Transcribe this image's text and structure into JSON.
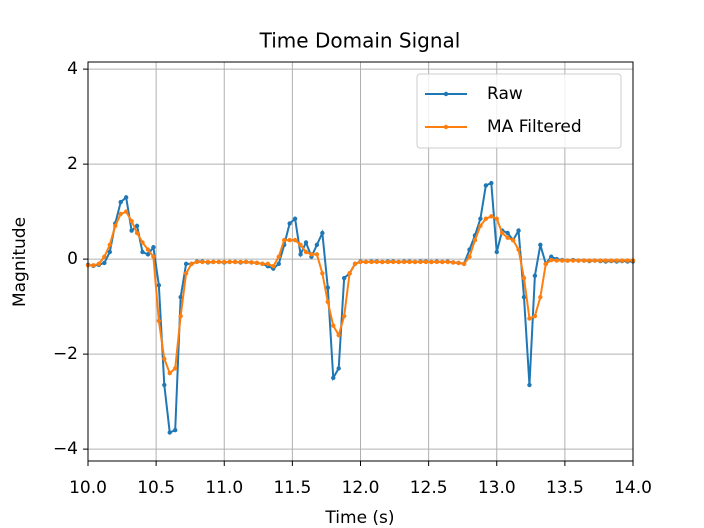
{
  "chart_data": {
    "type": "line",
    "title": "Time Domain Signal",
    "x_label": "Time (s)",
    "y_label": "Magnitude",
    "x": [
      10.0,
      10.04,
      10.08,
      10.12,
      10.16,
      10.2,
      10.24,
      10.28,
      10.32,
      10.36,
      10.4,
      10.44,
      10.48,
      10.52,
      10.56,
      10.6,
      10.64,
      10.68,
      10.72,
      10.76,
      10.8,
      10.84,
      10.88,
      10.92,
      10.96,
      11.0,
      11.04,
      11.08,
      11.12,
      11.16,
      11.2,
      11.24,
      11.28,
      11.32,
      11.36,
      11.4,
      11.44,
      11.48,
      11.52,
      11.56,
      11.6,
      11.64,
      11.68,
      11.72,
      11.76,
      11.8,
      11.84,
      11.88,
      11.92,
      11.96,
      12.0,
      12.04,
      12.08,
      12.12,
      12.16,
      12.2,
      12.24,
      12.28,
      12.32,
      12.36,
      12.4,
      12.44,
      12.48,
      12.52,
      12.56,
      12.6,
      12.64,
      12.68,
      12.72,
      12.76,
      12.8,
      12.84,
      12.88,
      12.92,
      12.96,
      13.0,
      13.04,
      13.08,
      13.12,
      13.16,
      13.2,
      13.24,
      13.28,
      13.32,
      13.36,
      13.4,
      13.44,
      13.48,
      13.52,
      13.56,
      13.6,
      13.64,
      13.68,
      13.72,
      13.76,
      13.8,
      13.84,
      13.88,
      13.92,
      13.96,
      14.0
    ],
    "series": [
      {
        "name": "Raw",
        "color": "#1f77b4",
        "values": [
          -0.12,
          -0.14,
          -0.12,
          -0.08,
          0.15,
          0.75,
          1.2,
          1.3,
          0.6,
          0.7,
          0.15,
          0.1,
          0.25,
          -0.55,
          -2.65,
          -3.65,
          -3.6,
          -0.8,
          -0.1,
          -0.1,
          -0.05,
          -0.05,
          -0.07,
          -0.06,
          -0.06,
          -0.07,
          -0.06,
          -0.06,
          -0.07,
          -0.06,
          -0.07,
          -0.08,
          -0.1,
          -0.15,
          -0.2,
          -0.1,
          0.3,
          0.75,
          0.85,
          0.1,
          0.35,
          0.05,
          0.3,
          0.55,
          -0.6,
          -2.5,
          -2.3,
          -0.4,
          -0.3,
          -0.1,
          -0.05,
          -0.06,
          -0.05,
          -0.05,
          -0.06,
          -0.05,
          -0.05,
          -0.06,
          -0.05,
          -0.05,
          -0.06,
          -0.05,
          -0.05,
          -0.06,
          -0.05,
          -0.06,
          -0.05,
          -0.07,
          -0.08,
          -0.1,
          0.2,
          0.5,
          0.85,
          1.55,
          1.6,
          0.15,
          0.6,
          0.55,
          0.4,
          0.6,
          -0.8,
          -2.65,
          -0.35,
          0.3,
          -0.1,
          0.05,
          0.0,
          -0.02,
          -0.03,
          -0.02,
          -0.03,
          -0.03,
          -0.04,
          -0.03,
          -0.04,
          -0.05,
          -0.04,
          -0.05,
          -0.04,
          -0.05,
          -0.05
        ]
      },
      {
        "name": "MA Filtered",
        "color": "#ff7f0e",
        "values": [
          -0.13,
          -0.13,
          -0.1,
          0.05,
          0.3,
          0.7,
          0.95,
          1.0,
          0.8,
          0.55,
          0.35,
          0.2,
          0.05,
          -1.3,
          -2.1,
          -2.4,
          -2.3,
          -1.2,
          -0.3,
          -0.1,
          -0.06,
          -0.06,
          -0.06,
          -0.06,
          -0.06,
          -0.06,
          -0.06,
          -0.06,
          -0.06,
          -0.06,
          -0.07,
          -0.08,
          -0.1,
          -0.1,
          -0.15,
          0.05,
          0.4,
          0.4,
          0.4,
          0.3,
          0.15,
          0.1,
          0.1,
          -0.3,
          -0.9,
          -1.4,
          -1.6,
          -1.2,
          -0.3,
          -0.1,
          -0.06,
          -0.06,
          -0.06,
          -0.06,
          -0.06,
          -0.06,
          -0.06,
          -0.06,
          -0.06,
          -0.06,
          -0.06,
          -0.06,
          -0.06,
          -0.06,
          -0.06,
          -0.06,
          -0.06,
          -0.07,
          -0.08,
          -0.1,
          0.05,
          0.4,
          0.7,
          0.85,
          0.9,
          0.85,
          0.55,
          0.45,
          0.4,
          0.2,
          -0.4,
          -1.25,
          -1.2,
          -0.8,
          -0.1,
          -0.02,
          -0.03,
          -0.03,
          -0.03,
          -0.03,
          -0.03,
          -0.03,
          -0.03,
          -0.03,
          -0.03,
          -0.03,
          -0.03,
          -0.03,
          -0.03,
          -0.03,
          -0.03
        ]
      }
    ],
    "xlim": [
      10,
      14
    ],
    "ylim": [
      -4.25,
      4.15
    ],
    "xticks": [
      {
        "value": 10,
        "label": "10.0"
      },
      {
        "value": 10.5,
        "label": "10.5"
      },
      {
        "value": 11,
        "label": "11.0"
      },
      {
        "value": 11.5,
        "label": "11.5"
      },
      {
        "value": 12,
        "label": "12.0"
      },
      {
        "value": 12.5,
        "label": "12.5"
      },
      {
        "value": 13,
        "label": "13.0"
      },
      {
        "value": 13.5,
        "label": "13.5"
      },
      {
        "value": 14,
        "label": "14.0"
      }
    ],
    "yticks": [
      {
        "value": -4,
        "label": "−4"
      },
      {
        "value": -2,
        "label": "−2"
      },
      0,
      2,
      4
    ],
    "grid": true,
    "legend": "upper right"
  }
}
